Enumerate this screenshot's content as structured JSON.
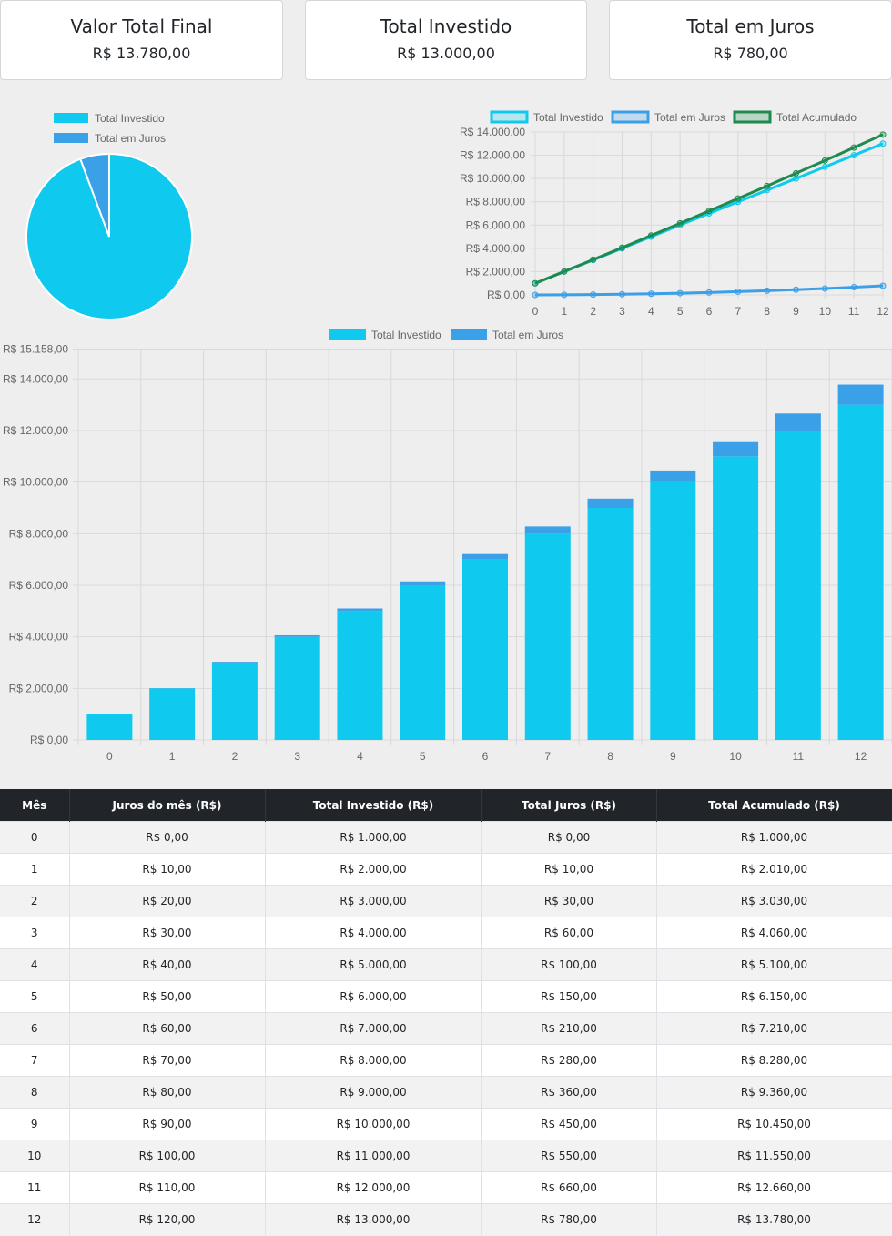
{
  "summary": [
    {
      "title": "Valor Total Final",
      "value": "R$ 13.780,00"
    },
    {
      "title": "Total Investido",
      "value": "R$ 13.000,00"
    },
    {
      "title": "Total em Juros",
      "value": "R$ 780,00"
    }
  ],
  "colors": {
    "investido": "#0fcaee",
    "juros": "#3aa0e8",
    "acumulado": "#1e8a4e",
    "grid": "#d9d9d9",
    "axis_text": "#666666"
  },
  "chart_data": [
    {
      "type": "pie",
      "labels": [
        "Total Investido",
        "Total em Juros"
      ],
      "values": [
        13000,
        780
      ]
    },
    {
      "type": "line",
      "x": [
        0,
        1,
        2,
        3,
        4,
        5,
        6,
        7,
        8,
        9,
        10,
        11,
        12
      ],
      "series": [
        {
          "name": "Total Investido",
          "values": [
            1000,
            2000,
            3000,
            4000,
            5000,
            6000,
            7000,
            8000,
            9000,
            10000,
            11000,
            12000,
            13000
          ]
        },
        {
          "name": "Total em Juros",
          "values": [
            0,
            10,
            30,
            60,
            100,
            150,
            210,
            280,
            360,
            450,
            550,
            660,
            780
          ]
        },
        {
          "name": "Total Acumulado",
          "values": [
            1000,
            2010,
            3030,
            4060,
            5100,
            6150,
            7210,
            8280,
            9360,
            10450,
            11550,
            12660,
            13780
          ]
        }
      ],
      "ylim": [
        0,
        14000
      ],
      "yticks": [
        "R$ 0,00",
        "R$ 2.000,00",
        "R$ 4.000,00",
        "R$ 6.000,00",
        "R$ 8.000,00",
        "R$ 10.000,00",
        "R$ 12.000,00",
        "R$ 14.000,00"
      ],
      "grid": true,
      "legend": "top"
    },
    {
      "type": "bar",
      "stacked": true,
      "categories": [
        "0",
        "1",
        "2",
        "3",
        "4",
        "5",
        "6",
        "7",
        "8",
        "9",
        "10",
        "11",
        "12"
      ],
      "series": [
        {
          "name": "Total Investido",
          "values": [
            1000,
            2000,
            3000,
            4000,
            5000,
            6000,
            7000,
            8000,
            9000,
            10000,
            11000,
            12000,
            13000
          ]
        },
        {
          "name": "Total em Juros",
          "values": [
            0,
            10,
            30,
            60,
            100,
            150,
            210,
            280,
            360,
            450,
            550,
            660,
            780
          ]
        }
      ],
      "ylim": [
        0,
        15158
      ],
      "yticks": [
        "R$ 0,00",
        "R$ 2.000,00",
        "R$ 4.000,00",
        "R$ 6.000,00",
        "R$ 8.000,00",
        "R$ 10.000,00",
        "R$ 12.000,00",
        "R$ 14.000,00",
        "R$ 15.158,00"
      ],
      "grid": true,
      "legend": "top"
    }
  ],
  "table": {
    "headers": [
      "Mês",
      "Juros do mês (R$)",
      "Total Investido (R$)",
      "Total Juros (R$)",
      "Total Acumulado (R$)"
    ],
    "rows": [
      [
        "0",
        "R$ 0,00",
        "R$ 1.000,00",
        "R$ 0,00",
        "R$ 1.000,00"
      ],
      [
        "1",
        "R$ 10,00",
        "R$ 2.000,00",
        "R$ 10,00",
        "R$ 2.010,00"
      ],
      [
        "2",
        "R$ 20,00",
        "R$ 3.000,00",
        "R$ 30,00",
        "R$ 3.030,00"
      ],
      [
        "3",
        "R$ 30,00",
        "R$ 4.000,00",
        "R$ 60,00",
        "R$ 4.060,00"
      ],
      [
        "4",
        "R$ 40,00",
        "R$ 5.000,00",
        "R$ 100,00",
        "R$ 5.100,00"
      ],
      [
        "5",
        "R$ 50,00",
        "R$ 6.000,00",
        "R$ 150,00",
        "R$ 6.150,00"
      ],
      [
        "6",
        "R$ 60,00",
        "R$ 7.000,00",
        "R$ 210,00",
        "R$ 7.210,00"
      ],
      [
        "7",
        "R$ 70,00",
        "R$ 8.000,00",
        "R$ 280,00",
        "R$ 8.280,00"
      ],
      [
        "8",
        "R$ 80,00",
        "R$ 9.000,00",
        "R$ 360,00",
        "R$ 9.360,00"
      ],
      [
        "9",
        "R$ 90,00",
        "R$ 10.000,00",
        "R$ 450,00",
        "R$ 10.450,00"
      ],
      [
        "10",
        "R$ 100,00",
        "R$ 11.000,00",
        "R$ 550,00",
        "R$ 11.550,00"
      ],
      [
        "11",
        "R$ 110,00",
        "R$ 12.000,00",
        "R$ 660,00",
        "R$ 12.660,00"
      ],
      [
        "12",
        "R$ 120,00",
        "R$ 13.000,00",
        "R$ 780,00",
        "R$ 13.780,00"
      ]
    ]
  }
}
